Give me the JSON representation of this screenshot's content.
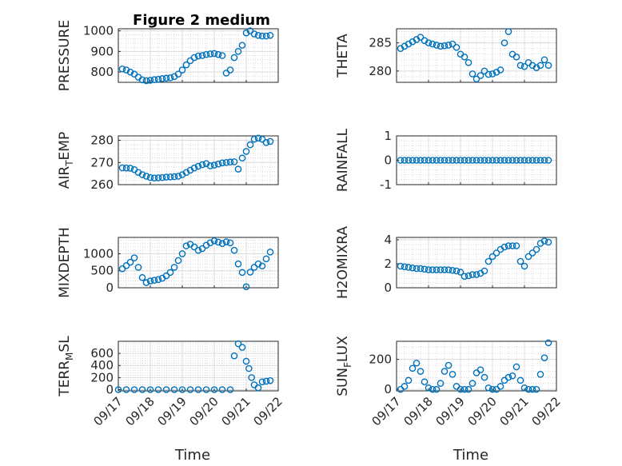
{
  "figure": {
    "title": "Figure 2 medium"
  },
  "chart_data": [
    {
      "type": "scatter",
      "panel": 1,
      "ylabel": "PRESSURE",
      "ylabel_sub": "",
      "xlabel": "",
      "xlim": [
        "09/17",
        "09/22"
      ],
      "ylim": [
        750,
        1010
      ],
      "yticks": [
        800,
        900,
        1000
      ],
      "grid": true,
      "marker_color": "#0072BD",
      "x": [
        "09/17 03:00",
        "09/17 06:00",
        "09/17 09:00",
        "09/17 12:00",
        "09/17 15:00",
        "09/17 18:00",
        "09/17 21:00",
        "09/18 00:00",
        "09/18 03:00",
        "09/18 06:00",
        "09/18 09:00",
        "09/18 12:00",
        "09/18 15:00",
        "09/18 18:00",
        "09/18 21:00",
        "09/19 00:00",
        "09/19 03:00",
        "09/19 06:00",
        "09/19 09:00",
        "09/19 12:00",
        "09/19 15:00",
        "09/19 18:00",
        "09/19 21:00",
        "09/20 00:00",
        "09/20 03:00",
        "09/20 06:00",
        "09/20 09:00",
        "09/20 12:00",
        "09/20 15:00",
        "09/20 18:00",
        "09/20 21:00",
        "09/21 00:00",
        "09/21 03:00",
        "09/21 06:00",
        "09/21 09:00",
        "09/21 12:00",
        "09/21 15:00",
        "09/21 18:00"
      ],
      "y": [
        815,
        810,
        800,
        790,
        775,
        762,
        758,
        760,
        763,
        765,
        768,
        770,
        772,
        778,
        790,
        810,
        835,
        855,
        870,
        878,
        880,
        885,
        888,
        890,
        885,
        880,
        795,
        810,
        870,
        900,
        930,
        990,
        1000,
        985,
        978,
        975,
        975,
        978
      ]
    },
    {
      "type": "scatter",
      "panel": 2,
      "ylabel": "THETA",
      "ylabel_sub": "",
      "xlabel": "",
      "xlim": [
        "09/17",
        "09/22"
      ],
      "ylim": [
        278,
        287.5
      ],
      "yticks": [
        280,
        285
      ],
      "grid": true,
      "marker_color": "#0072BD",
      "x": [
        "09/17 03:00",
        "09/17 06:00",
        "09/17 09:00",
        "09/17 12:00",
        "09/17 15:00",
        "09/17 18:00",
        "09/17 21:00",
        "09/18 00:00",
        "09/18 03:00",
        "09/18 06:00",
        "09/18 09:00",
        "09/18 12:00",
        "09/18 15:00",
        "09/18 18:00",
        "09/18 21:00",
        "09/19 00:00",
        "09/19 03:00",
        "09/19 06:00",
        "09/19 09:00",
        "09/19 12:00",
        "09/19 15:00",
        "09/19 18:00",
        "09/19 21:00",
        "09/20 00:00",
        "09/20 03:00",
        "09/20 06:00",
        "09/20 09:00",
        "09/20 12:00",
        "09/20 15:00",
        "09/20 18:00",
        "09/20 21:00",
        "09/21 00:00",
        "09/21 03:00",
        "09/21 06:00",
        "09/21 09:00",
        "09/21 12:00",
        "09/21 15:00",
        "09/21 18:00"
      ],
      "y": [
        284,
        284.4,
        284.8,
        285.2,
        285.6,
        286,
        285.4,
        285,
        284.8,
        284.6,
        284.4,
        284.5,
        284.6,
        284.8,
        284.2,
        283,
        282.5,
        281.5,
        279.5,
        278.6,
        279.2,
        280,
        279.4,
        279.5,
        279.8,
        280.2,
        285,
        287,
        283,
        282.5,
        281,
        280.8,
        281.5,
        281,
        280.6,
        281,
        282,
        281
      ]
    },
    {
      "type": "scatter",
      "panel": 3,
      "ylabel": "AIR",
      "ylabel_sub": "T",
      "ylabel_suffix": "EMP",
      "xlabel": "",
      "xlim": [
        "09/17",
        "09/22"
      ],
      "ylim": [
        260,
        282
      ],
      "yticks": [
        260,
        270,
        280
      ],
      "grid": true,
      "marker_color": "#0072BD",
      "x": [
        "09/17 03:00",
        "09/17 06:00",
        "09/17 09:00",
        "09/17 12:00",
        "09/17 15:00",
        "09/17 18:00",
        "09/17 21:00",
        "09/18 00:00",
        "09/18 03:00",
        "09/18 06:00",
        "09/18 09:00",
        "09/18 12:00",
        "09/18 15:00",
        "09/18 18:00",
        "09/18 21:00",
        "09/19 00:00",
        "09/19 03:00",
        "09/19 06:00",
        "09/19 09:00",
        "09/19 12:00",
        "09/19 15:00",
        "09/19 18:00",
        "09/19 21:00",
        "09/20 00:00",
        "09/20 03:00",
        "09/20 06:00",
        "09/20 09:00",
        "09/20 12:00",
        "09/20 15:00",
        "09/20 18:00",
        "09/20 21:00",
        "09/21 00:00",
        "09/21 03:00",
        "09/21 06:00",
        "09/21 09:00",
        "09/21 12:00",
        "09/21 15:00",
        "09/21 18:00"
      ],
      "y": [
        267.6,
        267.5,
        267.4,
        266.8,
        265.5,
        264.5,
        263.8,
        263.2,
        263.0,
        263.1,
        263.2,
        263.4,
        263.5,
        263.6,
        263.8,
        264.5,
        265.5,
        266.5,
        267.5,
        268.3,
        269,
        269.5,
        268.5,
        268.8,
        269.3,
        269.8,
        270,
        270.2,
        270.3,
        267,
        272,
        275,
        278,
        280.5,
        281,
        280.5,
        279,
        279.5
      ]
    },
    {
      "type": "scatter",
      "panel": 4,
      "ylabel": "RAINFALL",
      "ylabel_sub": "",
      "xlabel": "",
      "xlim": [
        "09/17",
        "09/22"
      ],
      "ylim": [
        -1,
        1
      ],
      "yticks": [
        -1,
        0,
        1
      ],
      "grid": true,
      "marker_color": "#0072BD",
      "x": [
        "09/17 03:00",
        "09/17 06:00",
        "09/17 09:00",
        "09/17 12:00",
        "09/17 15:00",
        "09/17 18:00",
        "09/17 21:00",
        "09/18 00:00",
        "09/18 03:00",
        "09/18 06:00",
        "09/18 09:00",
        "09/18 12:00",
        "09/18 15:00",
        "09/18 18:00",
        "09/18 21:00",
        "09/19 00:00",
        "09/19 03:00",
        "09/19 06:00",
        "09/19 09:00",
        "09/19 12:00",
        "09/19 15:00",
        "09/19 18:00",
        "09/19 21:00",
        "09/20 00:00",
        "09/20 03:00",
        "09/20 06:00",
        "09/20 09:00",
        "09/20 12:00",
        "09/20 15:00",
        "09/20 18:00",
        "09/20 21:00",
        "09/21 00:00",
        "09/21 03:00",
        "09/21 06:00",
        "09/21 09:00",
        "09/21 12:00",
        "09/21 15:00",
        "09/21 18:00"
      ],
      "y": [
        0,
        0,
        0,
        0,
        0,
        0,
        0,
        0,
        0,
        0,
        0,
        0,
        0,
        0,
        0,
        0,
        0,
        0,
        0,
        0,
        0,
        0,
        0,
        0,
        0,
        0,
        0,
        0,
        0,
        0,
        0,
        0,
        0,
        0,
        0,
        0,
        0,
        0
      ]
    },
    {
      "type": "scatter",
      "panel": 5,
      "ylabel": "MIXDEPTH",
      "ylabel_sub": "",
      "xlabel": "",
      "xlim": [
        "09/17",
        "09/22"
      ],
      "ylim": [
        0,
        1480
      ],
      "yticks": [
        0,
        500,
        1000
      ],
      "grid": true,
      "marker_color": "#0072BD",
      "x": [
        "09/17 03:00",
        "09/17 06:00",
        "09/17 09:00",
        "09/17 12:00",
        "09/17 15:00",
        "09/17 18:00",
        "09/17 21:00",
        "09/18 00:00",
        "09/18 03:00",
        "09/18 06:00",
        "09/18 09:00",
        "09/18 12:00",
        "09/18 15:00",
        "09/18 18:00",
        "09/18 21:00",
        "09/19 00:00",
        "09/19 03:00",
        "09/19 06:00",
        "09/19 09:00",
        "09/19 12:00",
        "09/19 15:00",
        "09/19 18:00",
        "09/19 21:00",
        "09/20 00:00",
        "09/20 03:00",
        "09/20 06:00",
        "09/20 09:00",
        "09/20 12:00",
        "09/20 15:00",
        "09/20 18:00",
        "09/20 21:00",
        "09/21 00:00",
        "09/21 03:00",
        "09/21 06:00",
        "09/21 09:00",
        "09/21 12:00",
        "09/21 15:00",
        "09/21 18:00"
      ],
      "y": [
        560,
        650,
        750,
        880,
        600,
        300,
        150,
        200,
        220,
        240,
        280,
        350,
        450,
        600,
        800,
        1000,
        1230,
        1280,
        1200,
        1100,
        1150,
        1250,
        1320,
        1380,
        1340,
        1300,
        1350,
        1320,
        1100,
        700,
        450,
        30,
        460,
        600,
        700,
        640,
        850,
        1050
      ]
    },
    {
      "type": "scatter",
      "panel": 6,
      "ylabel": "H2OMIXRA",
      "ylabel_sub": "",
      "xlabel": "",
      "xlim": [
        "09/17",
        "09/22"
      ],
      "ylim": [
        0,
        4.2
      ],
      "yticks": [
        0,
        2,
        4
      ],
      "grid": true,
      "marker_color": "#0072BD",
      "x": [
        "09/17 03:00",
        "09/17 06:00",
        "09/17 09:00",
        "09/17 12:00",
        "09/17 15:00",
        "09/17 18:00",
        "09/17 21:00",
        "09/18 00:00",
        "09/18 03:00",
        "09/18 06:00",
        "09/18 09:00",
        "09/18 12:00",
        "09/18 15:00",
        "09/18 18:00",
        "09/18 21:00",
        "09/19 00:00",
        "09/19 03:00",
        "09/19 06:00",
        "09/19 09:00",
        "09/19 12:00",
        "09/19 15:00",
        "09/19 18:00",
        "09/19 21:00",
        "09/20 00:00",
        "09/20 03:00",
        "09/20 06:00",
        "09/20 09:00",
        "09/20 12:00",
        "09/20 15:00",
        "09/20 18:00",
        "09/20 21:00",
        "09/21 00:00",
        "09/21 03:00",
        "09/21 06:00",
        "09/21 09:00",
        "09/21 12:00",
        "09/21 15:00",
        "09/21 18:00"
      ],
      "y": [
        1.8,
        1.75,
        1.7,
        1.65,
        1.6,
        1.6,
        1.55,
        1.5,
        1.5,
        1.5,
        1.5,
        1.5,
        1.5,
        1.45,
        1.4,
        1.3,
        0.95,
        1.0,
        1.1,
        1.1,
        1.2,
        1.4,
        2.2,
        2.6,
        2.9,
        3.2,
        3.4,
        3.5,
        3.5,
        3.5,
        2.2,
        1.8,
        2.6,
        2.9,
        3.2,
        3.7,
        3.9,
        3.8
      ]
    },
    {
      "type": "scatter",
      "panel": 7,
      "ylabel": "TERR",
      "ylabel_sub": "M",
      "ylabel_suffix": "SL",
      "xlabel": "Time",
      "xlim": [
        "09/17",
        "09/22"
      ],
      "ylim": [
        -20,
        800
      ],
      "yticks": [
        0,
        200,
        400,
        600
      ],
      "grid": true,
      "marker_color": "#0072BD",
      "xticks": [
        "09/17",
        "09/18",
        "09/19",
        "09/20",
        "09/21",
        "09/22"
      ],
      "x": [
        "09/17 00:00",
        "09/17 06:00",
        "09/17 12:00",
        "09/17 18:00",
        "09/18 00:00",
        "09/18 06:00",
        "09/18 12:00",
        "09/18 18:00",
        "09/19 00:00",
        "09/19 06:00",
        "09/19 12:00",
        "09/19 18:00",
        "09/20 00:00",
        "09/20 06:00",
        "09/20 12:00",
        "09/20 15:00",
        "09/20 18:00",
        "09/20 21:00",
        "09/21 00:00",
        "09/21 02:00",
        "09/21 04:00",
        "09/21 06:00",
        "09/21 09:00",
        "09/21 12:00",
        "09/21 15:00",
        "09/21 18:00"
      ],
      "y": [
        0,
        0,
        0,
        0,
        0,
        0,
        0,
        0,
        0,
        0,
        0,
        0,
        0,
        0,
        0,
        560,
        760,
        700,
        470,
        350,
        200,
        80,
        30,
        130,
        140,
        150
      ]
    },
    {
      "type": "scatter",
      "panel": 8,
      "ylabel": "SUN",
      "ylabel_sub": "F",
      "ylabel_suffix": "LUX",
      "xlabel": "Time",
      "xlim": [
        "09/17",
        "09/22"
      ],
      "ylim": [
        -10,
        320
      ],
      "yticks": [
        0,
        200
      ],
      "grid": true,
      "marker_color": "#0072BD",
      "xticks": [
        "09/17",
        "09/18",
        "09/19",
        "09/20",
        "09/21",
        "09/22"
      ],
      "x": [
        "09/17 03:00",
        "09/17 06:00",
        "09/17 09:00",
        "09/17 12:00",
        "09/17 15:00",
        "09/17 18:00",
        "09/17 21:00",
        "09/18 00:00",
        "09/18 03:00",
        "09/18 06:00",
        "09/18 09:00",
        "09/18 12:00",
        "09/18 15:00",
        "09/18 18:00",
        "09/18 21:00",
        "09/19 00:00",
        "09/19 03:00",
        "09/19 06:00",
        "09/19 09:00",
        "09/19 12:00",
        "09/19 15:00",
        "09/19 18:00",
        "09/19 21:00",
        "09/20 00:00",
        "09/20 03:00",
        "09/20 06:00",
        "09/20 09:00",
        "09/20 12:00",
        "09/20 15:00",
        "09/20 18:00",
        "09/20 21:00",
        "09/21 00:00",
        "09/21 03:00",
        "09/21 06:00",
        "09/21 09:00",
        "09/21 12:00",
        "09/21 15:00",
        "09/21 18:00"
      ],
      "y": [
        0,
        20,
        60,
        140,
        175,
        120,
        50,
        10,
        0,
        0,
        40,
        120,
        160,
        100,
        20,
        0,
        0,
        0,
        40,
        110,
        130,
        80,
        10,
        0,
        0,
        20,
        60,
        80,
        90,
        150,
        60,
        10,
        0,
        0,
        0,
        100,
        210,
        310
      ]
    }
  ]
}
